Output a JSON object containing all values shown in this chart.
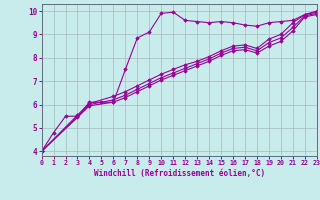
{
  "xlabel": "Windchill (Refroidissement éolien,°C)",
  "bg_color": "#c8ecec",
  "line_color": "#990099",
  "grid_color": "#aabbbb",
  "axis_color": "#666688",
  "xlim": [
    0,
    23
  ],
  "ylim": [
    3.8,
    10.3
  ],
  "xticks": [
    0,
    1,
    2,
    3,
    4,
    5,
    6,
    7,
    8,
    9,
    10,
    11,
    12,
    13,
    14,
    15,
    16,
    17,
    18,
    19,
    20,
    21,
    22,
    23
  ],
  "yticks": [
    4,
    5,
    6,
    7,
    8,
    9,
    10
  ],
  "line1_x": [
    0,
    1,
    2,
    3,
    4,
    5,
    6,
    7,
    8,
    9,
    10,
    11,
    12,
    13,
    14,
    15,
    16,
    17,
    18,
    19,
    20,
    21,
    22,
    23
  ],
  "line1_y": [
    4.0,
    4.8,
    5.5,
    5.5,
    6.1,
    6.1,
    6.1,
    7.5,
    8.85,
    9.1,
    9.9,
    9.95,
    9.6,
    9.55,
    9.5,
    9.55,
    9.5,
    9.4,
    9.35,
    9.5,
    9.55,
    9.6,
    9.85,
    10.0
  ],
  "line2_x": [
    0,
    3,
    4,
    6,
    7,
    8,
    9,
    10,
    11,
    12,
    13,
    14,
    15,
    16,
    17,
    18,
    19,
    20,
    21,
    22,
    23
  ],
  "line2_y": [
    4.0,
    5.55,
    6.05,
    6.35,
    6.55,
    6.8,
    7.05,
    7.3,
    7.5,
    7.7,
    7.85,
    8.05,
    8.3,
    8.5,
    8.55,
    8.4,
    8.8,
    9.0,
    9.5,
    9.85,
    9.95
  ],
  "line3_x": [
    0,
    3,
    4,
    6,
    7,
    8,
    9,
    10,
    11,
    12,
    13,
    14,
    15,
    16,
    17,
    18,
    19,
    20,
    21,
    22,
    23
  ],
  "line3_y": [
    4.0,
    5.5,
    6.0,
    6.2,
    6.4,
    6.65,
    6.9,
    7.15,
    7.35,
    7.55,
    7.75,
    7.95,
    8.2,
    8.4,
    8.45,
    8.3,
    8.65,
    8.85,
    9.3,
    9.8,
    9.9
  ],
  "line4_x": [
    0,
    3,
    4,
    6,
    7,
    8,
    9,
    10,
    11,
    12,
    13,
    14,
    15,
    16,
    17,
    18,
    19,
    20,
    21,
    22,
    23
  ],
  "line4_y": [
    4.0,
    5.45,
    5.95,
    6.1,
    6.3,
    6.55,
    6.8,
    7.05,
    7.25,
    7.45,
    7.65,
    7.85,
    8.1,
    8.3,
    8.35,
    8.2,
    8.5,
    8.7,
    9.15,
    9.75,
    9.85
  ]
}
